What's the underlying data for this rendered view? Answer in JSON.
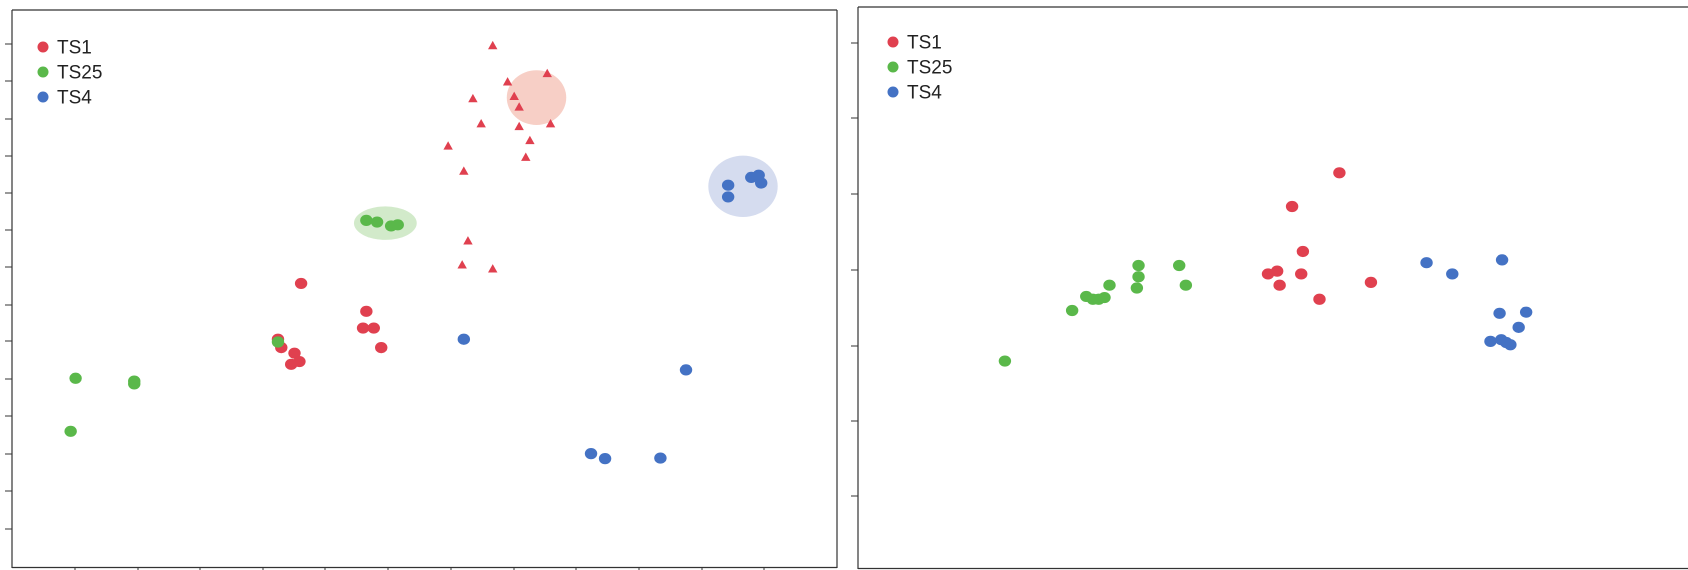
{
  "charts": [
    {
      "chart_data": {
        "type": "scatter",
        "title": "",
        "xlabel": "",
        "ylabel": "",
        "xlim": [
          0,
          100
        ],
        "ylim": [
          0,
          100
        ],
        "grid": false,
        "legend_position": "top-left",
        "colors": {
          "TS1": "#e0404f",
          "TS25": "#5ab84a",
          "TS4": "#4472c4"
        },
        "series": [
          {
            "name": "TS1",
            "color": "#e0404f",
            "marker": "circle",
            "points": [
              [
                35.0,
                51.0
              ],
              [
                32.2,
                41.0
              ],
              [
                32.6,
                39.5
              ],
              [
                34.2,
                38.5
              ],
              [
                34.8,
                37.0
              ],
              [
                33.8,
                36.5
              ],
              [
                42.9,
                46.0
              ],
              [
                42.5,
                43.0
              ],
              [
                43.8,
                43.0
              ],
              [
                44.7,
                39.5
              ]
            ]
          },
          {
            "name": "TS25",
            "color": "#5ab84a",
            "marker": "circle",
            "points": [
              [
                7.7,
                34.0
              ],
              [
                14.8,
                33.0
              ],
              [
                14.8,
                33.5
              ],
              [
                7.1,
                24.5
              ],
              [
                32.2,
                40.5
              ],
              [
                42.9,
                62.3
              ],
              [
                44.2,
                62.0
              ],
              [
                45.9,
                61.3
              ],
              [
                46.7,
                61.5
              ]
            ]
          },
          {
            "name": "TS4",
            "color": "#4472c4",
            "marker": "circle",
            "points": [
              [
                54.7,
                41.0
              ],
              [
                81.6,
                35.5
              ],
              [
                70.1,
                20.5
              ],
              [
                71.8,
                19.6
              ],
              [
                78.5,
                19.7
              ],
              [
                86.7,
                68.6
              ],
              [
                86.7,
                66.5
              ],
              [
                89.5,
                70.0
              ],
              [
                90.4,
                70.4
              ],
              [
                90.7,
                69.0
              ]
            ]
          },
          {
            "name": "",
            "color": "#e0404f",
            "marker": "triangle",
            "points": [
              [
                58.2,
                93.5
              ],
              [
                55.8,
                84.0
              ],
              [
                60.0,
                87.0
              ],
              [
                56.8,
                79.5
              ],
              [
                60.8,
                84.4
              ],
              [
                61.4,
                82.5
              ],
              [
                61.4,
                79.0
              ],
              [
                62.7,
                76.5
              ],
              [
                65.2,
                79.5
              ],
              [
                64.8,
                88.5
              ],
              [
                52.8,
                75.5
              ],
              [
                62.2,
                73.5
              ],
              [
                54.7,
                71.0
              ],
              [
                55.2,
                58.5
              ],
              [
                54.5,
                54.2
              ],
              [
                58.2,
                53.5
              ]
            ]
          }
        ],
        "ellipses": [
          {
            "color": "#f4bfb3",
            "center": [
              63.5,
              84.3
            ],
            "rx": 3.6,
            "ry": 4.9
          },
          {
            "color": "#c3e3b8",
            "center": [
              45.2,
              61.8
            ],
            "rx": 3.8,
            "ry": 3.0
          },
          {
            "color": "#c7d0ea",
            "center": [
              88.5,
              68.4
            ],
            "rx": 4.2,
            "ry": 5.5
          }
        ]
      }
    },
    {
      "chart_data": {
        "type": "scatter",
        "title": "",
        "xlabel": "",
        "ylabel": "",
        "xlim": [
          0,
          100
        ],
        "ylim": [
          0,
          100
        ],
        "grid": false,
        "legend_position": "top-left",
        "colors": {
          "TS1": "#e0404f",
          "TS25": "#5ab84a",
          "TS4": "#4472c4"
        },
        "series": [
          {
            "name": "TS1",
            "color": "#e0404f",
            "marker": "circle",
            "points": [
              [
                58.0,
                70.5
              ],
              [
                52.3,
                64.5
              ],
              [
                53.6,
                56.5
              ],
              [
                49.4,
                52.5
              ],
              [
                50.5,
                53.0
              ],
              [
                53.4,
                52.5
              ],
              [
                50.8,
                50.5
              ],
              [
                55.6,
                48.0
              ],
              [
                61.8,
                51.0
              ]
            ]
          },
          {
            "name": "TS25",
            "color": "#5ab84a",
            "marker": "circle",
            "points": [
              [
                17.7,
                37.0
              ],
              [
                25.8,
                46.0
              ],
              [
                27.5,
                48.5
              ],
              [
                28.3,
                48.0
              ],
              [
                29.0,
                48.0
              ],
              [
                29.7,
                48.3
              ],
              [
                30.3,
                50.5
              ],
              [
                33.6,
                50.0
              ],
              [
                33.8,
                52.0
              ],
              [
                33.8,
                54.0
              ],
              [
                38.7,
                54.0
              ],
              [
                39.5,
                50.5
              ]
            ]
          },
          {
            "name": "TS4",
            "color": "#4472c4",
            "marker": "circle",
            "points": [
              [
                68.5,
                54.5
              ],
              [
                71.6,
                52.5
              ],
              [
                77.6,
                55.0
              ],
              [
                77.3,
                45.5
              ],
              [
                79.6,
                43.0
              ],
              [
                80.5,
                45.7
              ],
              [
                76.2,
                40.5
              ],
              [
                77.5,
                40.8
              ],
              [
                78.1,
                40.3
              ],
              [
                78.6,
                39.9
              ]
            ]
          }
        ]
      }
    }
  ]
}
